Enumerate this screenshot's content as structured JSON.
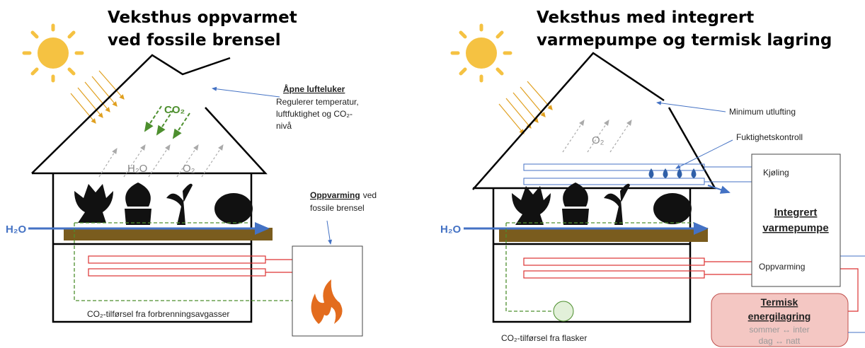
{
  "left": {
    "title": [
      "Veksthus oppvarmet",
      "ved fossile brensel"
    ],
    "vent_heading": "Åpne lufteluker",
    "vent_text": [
      "Regulerer temperatur,",
      "luftfuktighet og CO₂-",
      "nivå"
    ],
    "co2": "CO₂",
    "h2o": "H₂O",
    "o2": "O₂",
    "water_in": "H₂O",
    "heating_heading": "Oppvarming",
    "heating_text": [
      "ved",
      "fossile brensel"
    ],
    "co2_supply": "CO₂-tilførsel fra forbrenningsavgasser"
  },
  "right": {
    "title": [
      "Veksthus med integrert",
      "varmepumpe og termisk lagring"
    ],
    "min_vent": "Minimum utlufting",
    "humidity": "Fuktighetskontroll",
    "o2": "O₂",
    "water_in": "H₂O",
    "cooling": "Kjøling",
    "heat_pump": [
      "Integrert",
      "varmepumpe"
    ],
    "heating": "Oppvarming",
    "storage": [
      "Termisk",
      "energilagring"
    ],
    "storage_text": [
      "sommer ↔ inter",
      "dag ↔ natt"
    ],
    "co2_supply": "CO₂-tilførsel fra flasker"
  }
}
